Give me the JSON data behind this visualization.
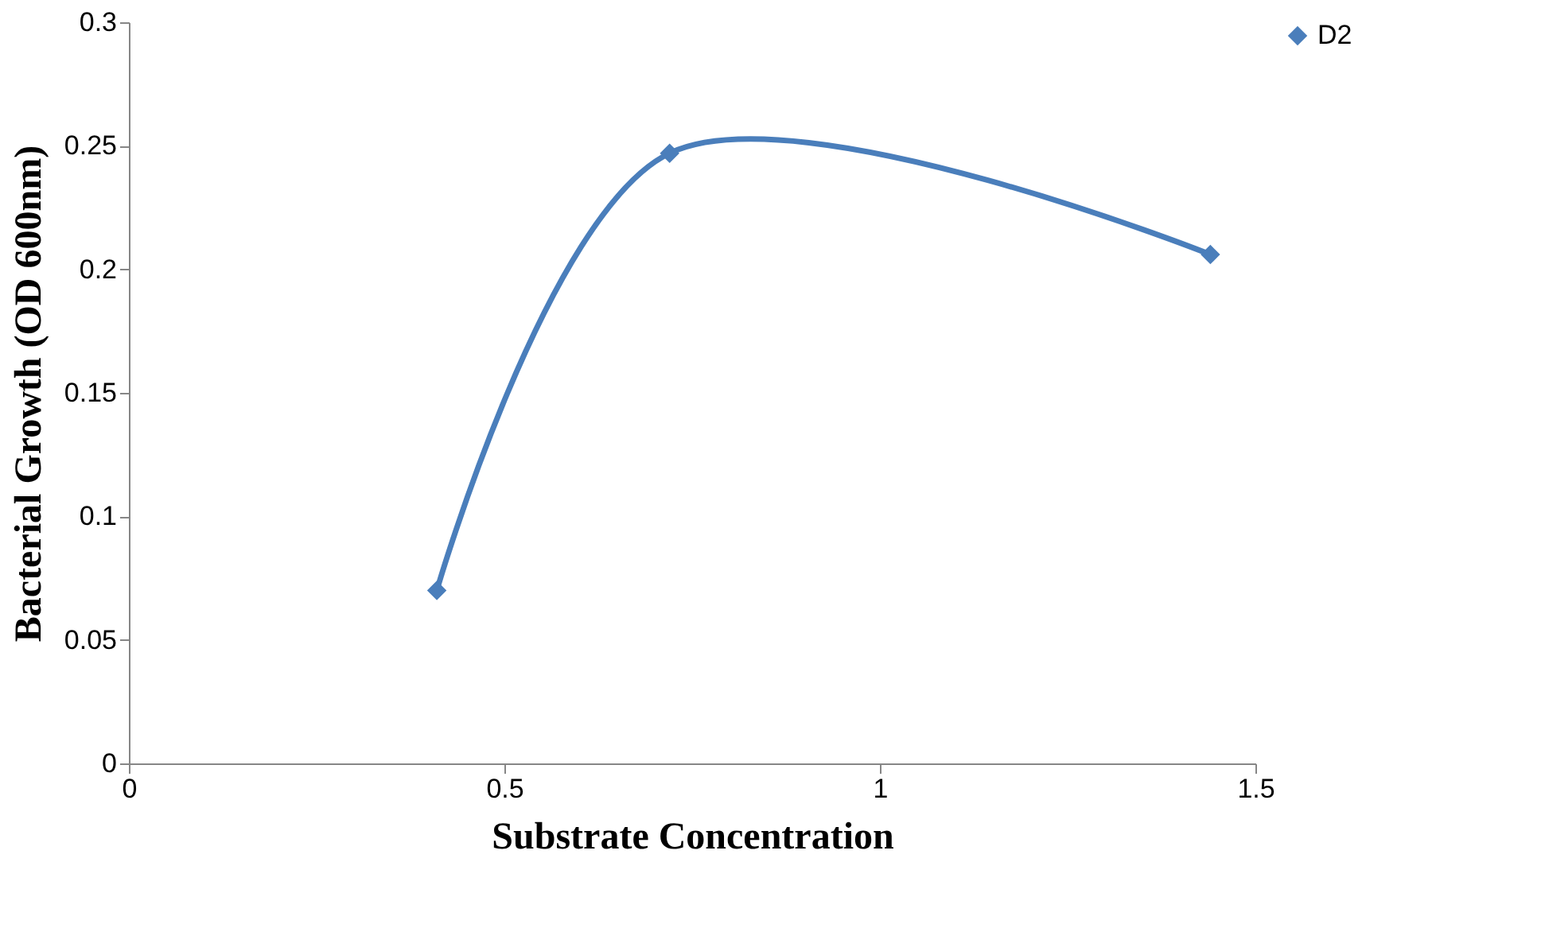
{
  "chart_data": {
    "type": "line",
    "xlabel": "Substrate Concentration",
    "ylabel": "Bacterial Growth (OD 600nm)",
    "x": [
      0.41,
      0.72,
      1.44
    ],
    "series": [
      {
        "name": "D2",
        "color": "#4a7ebb",
        "values": [
          0.07,
          0.247,
          0.206
        ]
      }
    ],
    "xlim": [
      0,
      1.5
    ],
    "xticks": [
      0,
      0.5,
      1,
      1.5
    ],
    "ylim": [
      0,
      0.3
    ],
    "yticks": [
      0,
      0.05,
      0.1,
      0.15,
      0.2,
      0.25,
      0.3
    ],
    "grid": false,
    "legend": "right",
    "marker": "diamond",
    "line_style": "solid"
  }
}
